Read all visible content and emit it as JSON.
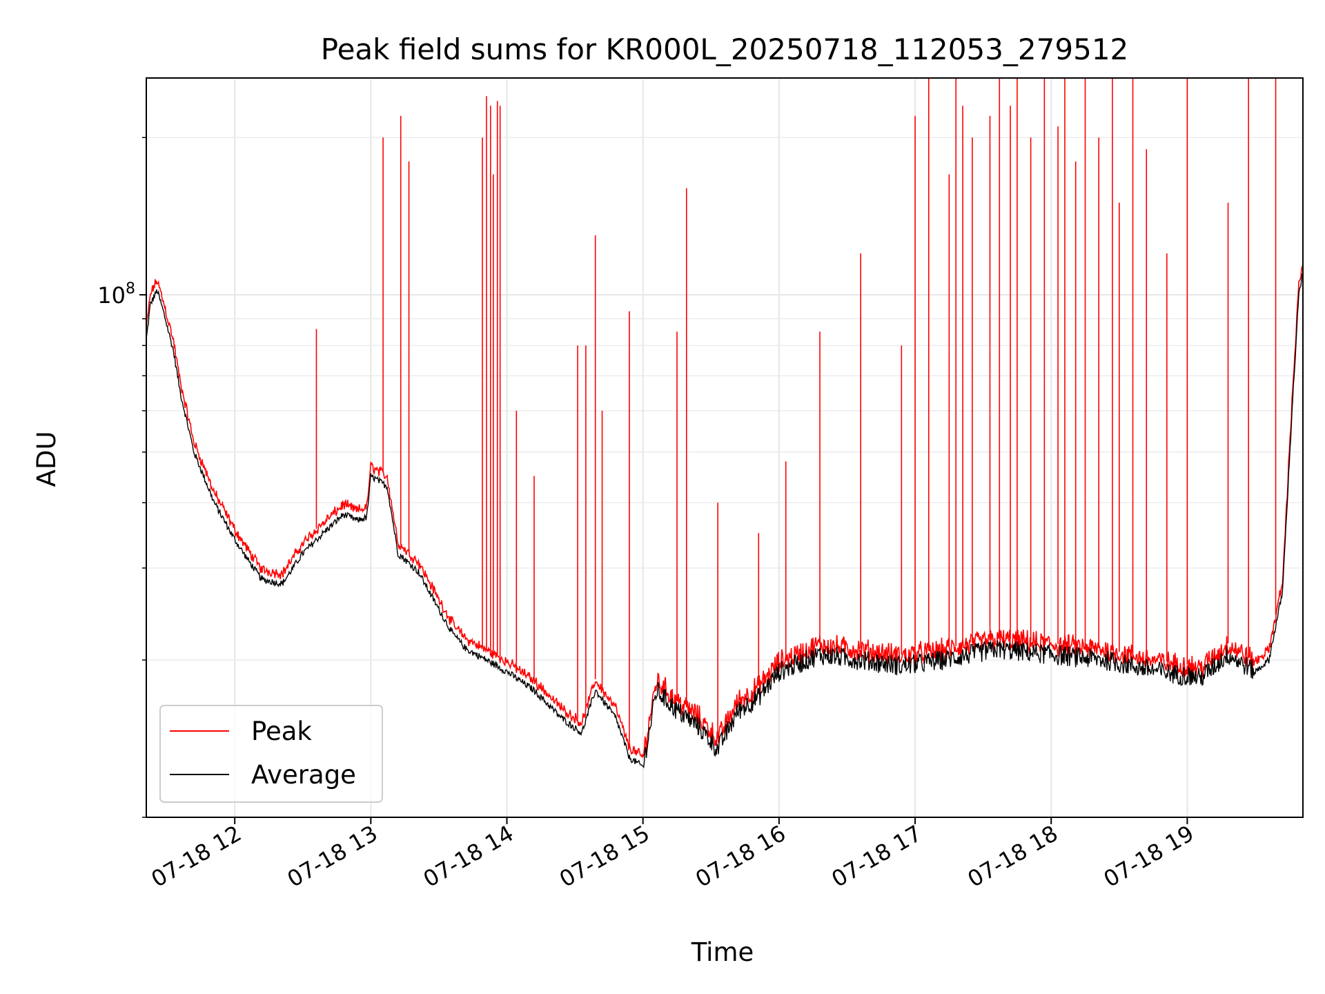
{
  "chart_data": {
    "type": "line",
    "title": "Peak field sums for KR000L_20250718_112053_279512",
    "xlabel": "Time",
    "ylabel": "ADU",
    "y_scale": "log",
    "x_tick_labels": [
      "07-18 12",
      "07-18 13",
      "07-18 14",
      "07-18 15",
      "07-18 16",
      "07-18 17",
      "07-18 18",
      "07-18 19"
    ],
    "x_ticks_hours": [
      12,
      13,
      14,
      15,
      16,
      17,
      18,
      19
    ],
    "y_tick_label": "10^8",
    "xlim_hours": [
      11.35,
      19.85
    ],
    "ylim": [
      10000000,
      260000000
    ],
    "grid": true,
    "legend": {
      "placement": "lower-left",
      "entries": [
        "Peak",
        "Average"
      ]
    },
    "colors": {
      "Peak": "#ff0000",
      "Average": "#000000"
    },
    "series": [
      {
        "name": "Average",
        "x_hours": [
          11.35,
          11.38,
          11.43,
          11.48,
          11.55,
          11.6,
          11.7,
          11.85,
          12.0,
          12.1,
          12.2,
          12.35,
          12.5,
          12.65,
          12.8,
          12.9,
          12.97,
          13.0,
          13.12,
          13.2,
          13.35,
          13.5,
          13.6,
          13.7,
          13.85,
          14.0,
          14.2,
          14.4,
          14.55,
          14.65,
          14.8,
          14.9,
          15.0,
          15.1,
          15.25,
          15.4,
          15.55,
          15.7,
          15.85,
          16.0,
          16.3,
          16.6,
          16.9,
          17.2,
          17.6,
          18.0,
          18.4,
          18.8,
          19.1,
          19.3,
          19.5,
          19.6,
          19.7,
          19.77,
          19.82,
          19.85
        ],
        "values": [
          82000000,
          96000000,
          102000000,
          92000000,
          78000000,
          65000000,
          50000000,
          40000000,
          34000000,
          31000000,
          28500000,
          28000000,
          32000000,
          35000000,
          38000000,
          37000000,
          37500000,
          45000000,
          43000000,
          32000000,
          29500000,
          25000000,
          22500000,
          21000000,
          20000000,
          19000000,
          17500000,
          15500000,
          14500000,
          17500000,
          15500000,
          13000000,
          12500000,
          17500000,
          16000000,
          15000000,
          13500000,
          16000000,
          17000000,
          19000000,
          20500000,
          20000000,
          19500000,
          20000000,
          21000000,
          20500000,
          20000000,
          19000000,
          18500000,
          20500000,
          19000000,
          20000000,
          27000000,
          60000000,
          100000000,
          110000000
        ]
      },
      {
        "name": "Peak",
        "spikes_x_hours": [
          12.6,
          13.09,
          13.22,
          13.28,
          13.82,
          13.85,
          13.88,
          13.9,
          13.93,
          13.95,
          14.07,
          14.2,
          14.52,
          14.58,
          14.65,
          14.7,
          14.9,
          15.25,
          15.32,
          15.55,
          15.85,
          16.05,
          16.3,
          16.6,
          16.9,
          17.0,
          17.1,
          17.25,
          17.3,
          17.35,
          17.42,
          17.55,
          17.62,
          17.7,
          17.75,
          17.85,
          17.95,
          18.05,
          18.1,
          18.18,
          18.25,
          18.35,
          18.45,
          18.5,
          18.6,
          18.7,
          18.85,
          19.0,
          19.3,
          19.45,
          19.65
        ],
        "spikes_values": [
          86000000,
          200000000,
          220000000,
          180000000,
          200000000,
          240000000,
          230000000,
          170000000,
          235000000,
          230000000,
          60000000,
          45000000,
          80000000,
          80000000,
          130000000,
          60000000,
          93000000,
          85000000,
          160000000,
          40000000,
          35000000,
          48000000,
          85000000,
          120000000,
          80000000,
          220000000,
          260000000,
          170000000,
          260000000,
          230000000,
          200000000,
          220000000,
          260000000,
          230000000,
          260000000,
          200000000,
          260000000,
          210000000,
          260000000,
          180000000,
          260000000,
          200000000,
          260000000,
          150000000,
          260000000,
          190000000,
          120000000,
          260000000,
          150000000,
          260000000,
          260000000
        ]
      }
    ]
  }
}
